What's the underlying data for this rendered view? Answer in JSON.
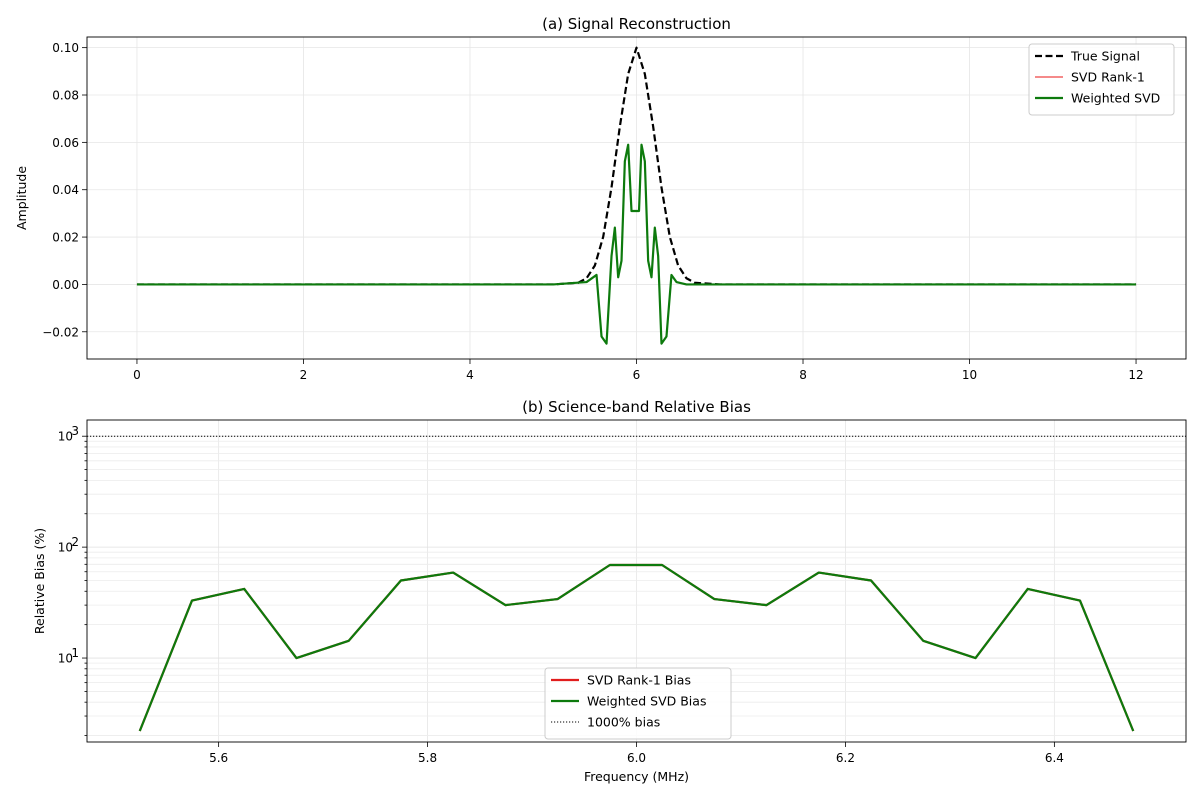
{
  "chart_data": [
    {
      "type": "line",
      "title": "(a) Signal Reconstruction",
      "xlabel": "",
      "ylabel": "Amplitude",
      "xlim": [
        -0.6,
        12.6
      ],
      "ylim": [
        -0.0315,
        0.1045
      ],
      "x_ticks": [
        0,
        2,
        4,
        6,
        8,
        10,
        12
      ],
      "x_tick_labels": [
        "0",
        "2",
        "4",
        "6",
        "8",
        "10",
        "12"
      ],
      "y_ticks": [
        -0.02,
        0.0,
        0.02,
        0.04,
        0.06,
        0.08,
        0.1
      ],
      "y_tick_labels": [
        "−0.02",
        "0.00",
        "0.02",
        "0.04",
        "0.06",
        "0.08",
        "0.10"
      ],
      "grid": true,
      "legend_position": "top-right",
      "series": [
        {
          "name": "True Signal",
          "color": "#000000",
          "style": "dashed",
          "x": [
            0,
            0.5,
            1,
            1.5,
            2,
            2.5,
            3,
            3.5,
            4,
            4.5,
            5,
            5.3,
            5.4,
            5.5,
            5.6,
            5.7,
            5.8,
            5.9,
            6.0,
            6.1,
            6.2,
            6.3,
            6.4,
            6.5,
            6.6,
            6.7,
            7,
            7.5,
            8,
            8.5,
            9,
            9.5,
            10,
            10.5,
            11,
            11.5,
            12
          ],
          "y": [
            0,
            0,
            0,
            0,
            0,
            0,
            0,
            0,
            0,
            0,
            0,
            0.0007,
            0.0026,
            0.008,
            0.0201,
            0.041,
            0.0667,
            0.0889,
            0.1,
            0.0889,
            0.0667,
            0.041,
            0.0201,
            0.008,
            0.0026,
            0.0007,
            0,
            0,
            0,
            0,
            0,
            0,
            0,
            0,
            0,
            0,
            0
          ]
        },
        {
          "name": "SVD Rank-1",
          "color": "#ef4444",
          "style": "solid",
          "x": [
            0,
            0.5,
            1,
            1.5,
            2,
            2.5,
            3,
            3.5,
            4,
            4.5,
            5,
            5.4,
            5.52,
            5.58,
            5.64,
            5.7,
            5.74,
            5.78,
            5.82,
            5.86,
            5.9,
            5.94,
            5.97,
            6.03,
            6.06,
            6.1,
            6.14,
            6.18,
            6.22,
            6.26,
            6.3,
            6.36,
            6.42,
            6.48,
            6.6,
            7,
            7.5,
            8,
            8.5,
            9,
            9.5,
            10,
            10.5,
            11,
            11.5,
            12
          ],
          "y": [
            0,
            0,
            0,
            0,
            0,
            0,
            0,
            0,
            0,
            0,
            0,
            0.001,
            0.004,
            -0.022,
            -0.025,
            0.012,
            0.024,
            0.003,
            0.01,
            0.052,
            0.059,
            0.031,
            0.031,
            0.031,
            0.059,
            0.052,
            0.01,
            0.003,
            0.024,
            0.012,
            -0.025,
            -0.022,
            0.004,
            0.001,
            0,
            0,
            0,
            0,
            0,
            0,
            0,
            0,
            0,
            0,
            0,
            0
          ]
        },
        {
          "name": "Weighted SVD",
          "color": "#0d7a0d",
          "style": "solid",
          "x": [
            0,
            0.5,
            1,
            1.5,
            2,
            2.5,
            3,
            3.5,
            4,
            4.5,
            5,
            5.4,
            5.52,
            5.58,
            5.64,
            5.7,
            5.74,
            5.78,
            5.82,
            5.86,
            5.9,
            5.94,
            5.97,
            6.03,
            6.06,
            6.1,
            6.14,
            6.18,
            6.22,
            6.26,
            6.3,
            6.36,
            6.42,
            6.48,
            6.6,
            7,
            7.5,
            8,
            8.5,
            9,
            9.5,
            10,
            10.5,
            11,
            11.5,
            12
          ],
          "y": [
            0,
            0,
            0,
            0,
            0,
            0,
            0,
            0,
            0,
            0,
            0,
            0.001,
            0.004,
            -0.022,
            -0.025,
            0.012,
            0.024,
            0.003,
            0.01,
            0.052,
            0.059,
            0.031,
            0.031,
            0.031,
            0.059,
            0.052,
            0.01,
            0.003,
            0.024,
            0.012,
            -0.025,
            -0.022,
            0.004,
            0.001,
            0,
            0,
            0,
            0,
            0,
            0,
            0,
            0,
            0,
            0,
            0,
            0
          ]
        }
      ]
    },
    {
      "type": "line",
      "title": "(b) Science-band Relative Bias",
      "xlabel": "Frequency (MHz)",
      "ylabel": "Relative Bias (%)",
      "yscale": "log",
      "xlim": [
        5.474,
        6.526
      ],
      "ylim": [
        1.75,
        1400
      ],
      "x_ticks": [
        5.6,
        5.8,
        6.0,
        6.2,
        6.4
      ],
      "x_tick_labels": [
        "5.6",
        "5.8",
        "6.0",
        "6.2",
        "6.4"
      ],
      "y_ticks": [
        10,
        100,
        1000
      ],
      "y_tick_labels": [
        "10",
        "10",
        "10"
      ],
      "y_tick_exponents": [
        "1",
        "2",
        "3"
      ],
      "grid": true,
      "legend_position": "bottom-center",
      "series": [
        {
          "name": "SVD Rank-1 Bias",
          "color": "#e11d1d",
          "style": "solid",
          "x": [
            5.5245,
            5.5745,
            5.6245,
            5.6745,
            5.7245,
            5.7745,
            5.8245,
            5.8745,
            5.9245,
            5.9745,
            6.0245,
            6.0745,
            6.1245,
            6.1745,
            6.2245,
            6.2745,
            6.3245,
            6.3745,
            6.4245,
            6.4755
          ],
          "y": [
            2.2,
            33,
            42,
            10,
            14.3,
            50,
            59,
            30,
            34,
            69,
            69,
            34,
            30,
            59,
            50,
            14.3,
            10,
            42,
            33,
            2.2
          ]
        },
        {
          "name": "Weighted SVD Bias",
          "color": "#0d7a0d",
          "style": "solid",
          "x": [
            5.5245,
            5.5745,
            5.6245,
            5.6745,
            5.7245,
            5.7745,
            5.8245,
            5.8745,
            5.9245,
            5.9745,
            6.0245,
            6.0745,
            6.1245,
            6.1745,
            6.2245,
            6.2745,
            6.3245,
            6.3745,
            6.4245,
            6.4755
          ],
          "y": [
            2.2,
            33,
            42,
            10,
            14.3,
            50,
            59,
            30,
            34,
            69,
            69,
            34,
            30,
            59,
            50,
            14.3,
            10,
            42,
            33,
            2.2
          ]
        },
        {
          "name": "1000% bias",
          "color": "#000000",
          "style": "dotted",
          "reference_y": 1000
        }
      ]
    }
  ]
}
